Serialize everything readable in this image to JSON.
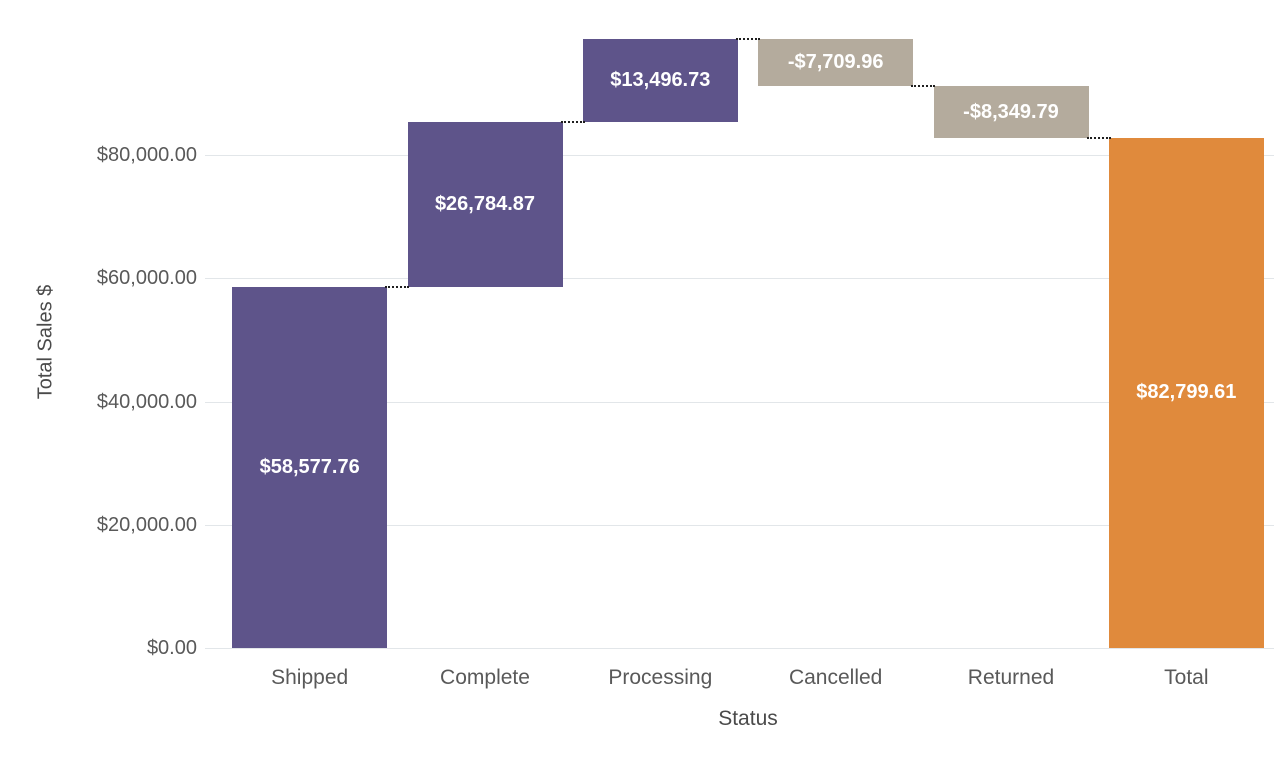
{
  "chart_data": {
    "type": "bar",
    "subtype": "waterfall",
    "title": "",
    "xlabel": "Status",
    "ylabel": "Total Sales $",
    "categories": [
      "Shipped",
      "Complete",
      "Processing",
      "Cancelled",
      "Returned",
      "Total"
    ],
    "bars": [
      {
        "label": "Shipped",
        "value": 58577.76,
        "display": "$58,577.76",
        "kind": "increase"
      },
      {
        "label": "Complete",
        "value": 26784.87,
        "display": "$26,784.87",
        "kind": "increase"
      },
      {
        "label": "Processing",
        "value": 13496.73,
        "display": "$13,496.73",
        "kind": "increase"
      },
      {
        "label": "Cancelled",
        "value": -7709.96,
        "display": "-$7,709.96",
        "kind": "decrease"
      },
      {
        "label": "Returned",
        "value": -8349.79,
        "display": "-$8,349.79",
        "kind": "decrease"
      },
      {
        "label": "Total",
        "value": 82799.61,
        "display": "$82,799.61",
        "kind": "total"
      }
    ],
    "running_totals": [
      58577.76,
      85362.63,
      98859.36,
      91149.4,
      82799.61,
      82799.61
    ],
    "y_ticks": [
      {
        "value": 0,
        "label": "$0.00"
      },
      {
        "value": 20000,
        "label": "$20,000.00"
      },
      {
        "value": 40000,
        "label": "$40,000.00"
      },
      {
        "value": 60000,
        "label": "$60,000.00"
      },
      {
        "value": 80000,
        "label": "$80,000.00"
      }
    ],
    "ylim": [
      0,
      103000
    ],
    "grid": true,
    "legend": false,
    "colors": {
      "increase": "#5e548a",
      "decrease": "#b4ab9d",
      "total": "#e08a3c",
      "gridline": "#e2e6e9",
      "axis_text": "#595959",
      "connector": "#1f1f1f"
    }
  }
}
